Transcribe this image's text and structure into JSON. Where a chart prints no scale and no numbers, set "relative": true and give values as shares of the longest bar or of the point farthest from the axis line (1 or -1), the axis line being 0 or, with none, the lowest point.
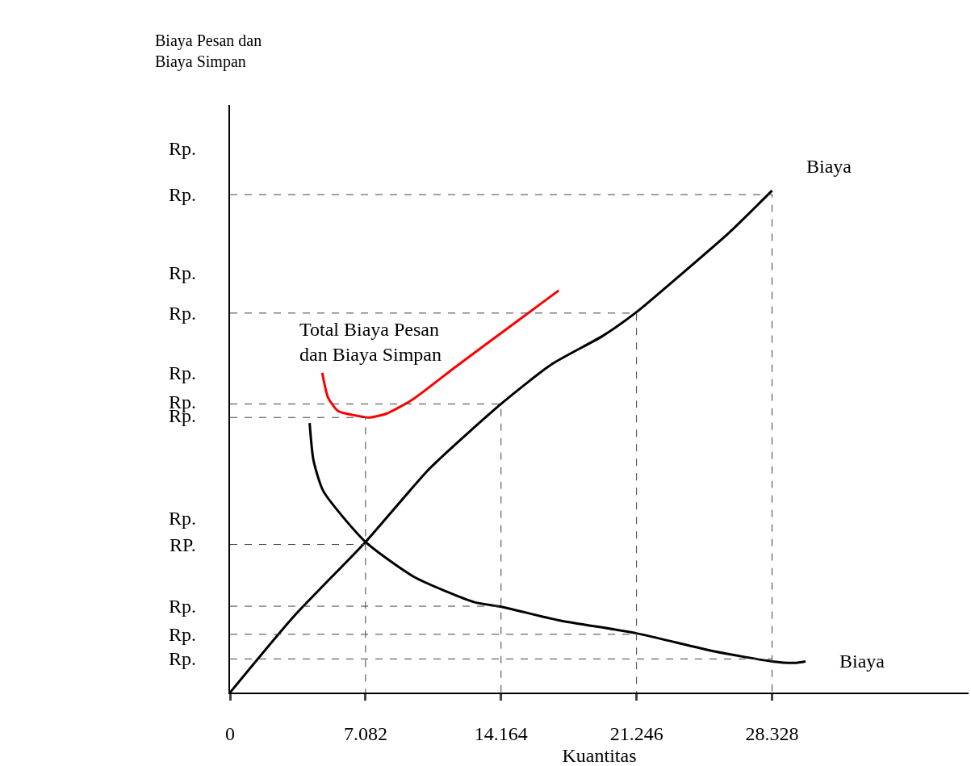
{
  "chart_data": {
    "type": "line",
    "relative": true,
    "xlabel": "Kuantitas",
    "xlim": [
      0,
      38.6
    ],
    "xticks": [
      0,
      7.082,
      14.164,
      21.246,
      28.328
    ],
    "grid": false,
    "legend": false,
    "marker": "none",
    "series": [
      {
        "name": "Biaya",
        "color": "#000000",
        "x": [
          0,
          3.34,
          7.082,
          10.45,
          14.164,
          16.81,
          19.5,
          21.246,
          23.42,
          26.08,
          28.328
        ],
        "values": [
          0,
          0.152,
          0.3,
          0.447,
          0.575,
          0.654,
          0.711,
          0.758,
          0.828,
          0.916,
          1
        ]
      },
      {
        "name": "Biaya",
        "color": "#000000",
        "x": [
          4.16,
          4.36,
          4.88,
          7.082,
          9.64,
          12.78,
          14.164,
          17.18,
          21.246,
          25.32,
          28.328,
          29.51,
          30.08
        ],
        "values": [
          0.537,
          0.463,
          0.401,
          0.3,
          0.23,
          0.18,
          0.171,
          0.144,
          0.118,
          0.082,
          0.062,
          0.059,
          0.062
        ]
      },
      {
        "name": "Total Biaya Pesan dan Biaya Simpan",
        "color": "#ff0000",
        "x": [
          4.82,
          5.13,
          5.65,
          6.42,
          7.31,
          8.2,
          9.55,
          11.79,
          14.55,
          17.18
        ],
        "values": [
          0.637,
          0.587,
          0.561,
          0.553,
          0.548,
          0.556,
          0.584,
          0.649,
          0.727,
          0.801
        ]
      },
      {
        "color": "#404040",
        "line_style": "dashed",
        "x": [
          0,
          28.328,
          28.328
        ],
        "values": [
          0.992,
          0.992,
          0
        ]
      },
      {
        "color": "#404040",
        "line_style": "dashed",
        "x": [
          0,
          21.246,
          21.246
        ],
        "values": [
          0.756,
          0.756,
          0
        ]
      },
      {
        "color": "#404040",
        "line_style": "dashed",
        "x": [
          0,
          14.164,
          14.164
        ],
        "values": [
          0.575,
          0.575,
          0
        ]
      },
      {
        "color": "#404040",
        "line_style": "dashed",
        "x": [
          0,
          7.082,
          7.082
        ],
        "values": [
          0.548,
          0.548,
          0
        ]
      },
      {
        "color": "#404040",
        "line_style": "dashed",
        "x": [
          0,
          7.082
        ],
        "values": [
          0.295,
          0.295
        ]
      },
      {
        "color": "#404040",
        "line_style": "dashed",
        "x": [
          0,
          14.164
        ],
        "values": [
          0.172,
          0.172
        ]
      },
      {
        "color": "#404040",
        "line_style": "dashed",
        "x": [
          0,
          21.246
        ],
        "values": [
          0.116,
          0.116
        ]
      },
      {
        "color": "#404040",
        "line_style": "dashed",
        "x": [
          0,
          28.328
        ],
        "values": [
          0.067,
          0.067
        ]
      }
    ],
    "annotations": [
      "Biaya Pesan dan Biaya Simpan",
      "Rp.",
      "Rp.",
      "Rp.",
      "Rp.",
      "Rp.",
      "Rp.",
      "Rp.",
      "Rp.",
      "RP.",
      "Rp.",
      "Rp.",
      "Rp."
    ]
  }
}
